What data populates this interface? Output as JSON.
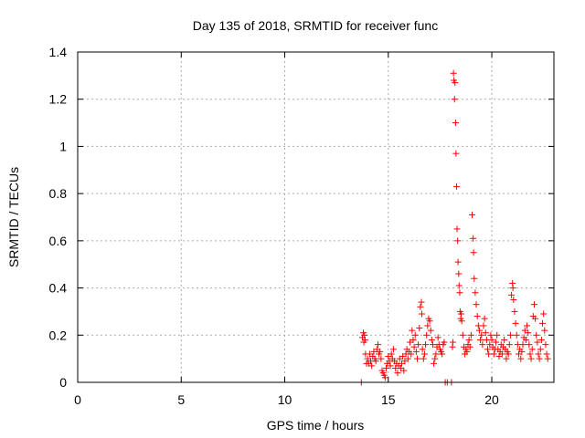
{
  "chart_data": {
    "type": "scatter",
    "title": "Day 135 of 2018, SRMTID for receiver func",
    "xlabel": "GPS time / hours",
    "ylabel": "SRMTID / TECUs",
    "xlim": [
      0,
      23
    ],
    "ylim": [
      0,
      1.4
    ],
    "x_ticks": [
      0,
      5,
      10,
      15,
      20
    ],
    "x_tick_labels": [
      "0",
      "5",
      "10",
      "15",
      "20"
    ],
    "y_ticks": [
      0,
      0.2,
      0.4,
      0.6,
      0.8,
      1.0,
      1.2,
      1.4
    ],
    "y_tick_labels": [
      "0",
      "0.2",
      "0.4",
      "0.6",
      "0.8",
      "1",
      "1.2",
      "1.4"
    ],
    "grid": true,
    "marker": "+",
    "series": [
      {
        "name": "SRMTID",
        "color": "#ff0000",
        "points": [
          [
            13.7,
            0.0
          ],
          [
            13.75,
            0.19
          ],
          [
            13.8,
            0.21
          ],
          [
            13.82,
            0.17
          ],
          [
            13.85,
            0.2
          ],
          [
            13.88,
            0.18
          ],
          [
            13.9,
            0.12
          ],
          [
            13.95,
            0.08
          ],
          [
            14.0,
            0.1
          ],
          [
            14.05,
            0.08
          ],
          [
            14.1,
            0.12
          ],
          [
            14.15,
            0.09
          ],
          [
            14.2,
            0.07
          ],
          [
            14.25,
            0.11
          ],
          [
            14.3,
            0.13
          ],
          [
            14.35,
            0.1
          ],
          [
            14.4,
            0.09
          ],
          [
            14.45,
            0.14
          ],
          [
            14.5,
            0.16
          ],
          [
            14.55,
            0.12
          ],
          [
            14.6,
            0.13
          ],
          [
            14.65,
            0.1
          ],
          [
            14.7,
            0.05
          ],
          [
            14.75,
            0.04
          ],
          [
            14.8,
            0.03
          ],
          [
            14.85,
            0.02
          ],
          [
            14.9,
            0.06
          ],
          [
            14.95,
            0.08
          ],
          [
            15.0,
            0.11
          ],
          [
            15.05,
            0.09
          ],
          [
            15.1,
            0.07
          ],
          [
            15.15,
            0.12
          ],
          [
            15.2,
            0.1
          ],
          [
            15.25,
            0.14
          ],
          [
            15.3,
            0.09
          ],
          [
            15.35,
            0.06
          ],
          [
            15.4,
            0.08
          ],
          [
            15.45,
            0.04
          ],
          [
            15.5,
            0.07
          ],
          [
            15.55,
            0.1
          ],
          [
            15.6,
            0.06
          ],
          [
            15.65,
            0.08
          ],
          [
            15.7,
            0.11
          ],
          [
            15.75,
            0.05
          ],
          [
            15.8,
            0.09
          ],
          [
            15.85,
            0.12
          ],
          [
            15.9,
            0.14
          ],
          [
            15.95,
            0.1
          ],
          [
            16.0,
            0.13
          ],
          [
            16.05,
            0.17
          ],
          [
            16.1,
            0.12
          ],
          [
            16.15,
            0.22
          ],
          [
            16.2,
            0.18
          ],
          [
            16.25,
            0.15
          ],
          [
            16.3,
            0.2
          ],
          [
            16.35,
            0.13
          ],
          [
            16.4,
            0.1
          ],
          [
            16.45,
            0.16
          ],
          [
            16.5,
            0.23
          ],
          [
            16.55,
            0.32
          ],
          [
            16.6,
            0.34
          ],
          [
            16.62,
            0.29
          ],
          [
            16.65,
            0.14
          ],
          [
            16.7,
            0.1
          ],
          [
            16.75,
            0.12
          ],
          [
            16.8,
            0.16
          ],
          [
            16.85,
            0.2
          ],
          [
            16.9,
            0.24
          ],
          [
            16.95,
            0.27
          ],
          [
            17.0,
            0.26
          ],
          [
            17.05,
            0.22
          ],
          [
            17.1,
            0.18
          ],
          [
            17.15,
            0.16
          ],
          [
            17.2,
            0.08
          ],
          [
            17.25,
            0.1
          ],
          [
            17.3,
            0.12
          ],
          [
            17.35,
            0.15
          ],
          [
            17.4,
            0.19
          ],
          [
            17.45,
            0.16
          ],
          [
            17.5,
            0.14
          ],
          [
            17.55,
            0.13
          ],
          [
            17.6,
            0.12
          ],
          [
            17.65,
            0.16
          ],
          [
            17.7,
            0.17
          ],
          [
            17.75,
            0.0
          ],
          [
            17.85,
            0.0
          ],
          [
            18.05,
            0.0
          ],
          [
            18.1,
            0.15
          ],
          [
            18.12,
            0.17
          ],
          [
            18.15,
            1.31
          ],
          [
            18.17,
            1.28
          ],
          [
            18.2,
            1.2
          ],
          [
            18.22,
            1.27
          ],
          [
            18.25,
            1.1
          ],
          [
            18.27,
            0.97
          ],
          [
            18.3,
            0.83
          ],
          [
            18.32,
            0.65
          ],
          [
            18.35,
            0.6
          ],
          [
            18.37,
            0.51
          ],
          [
            18.4,
            0.46
          ],
          [
            18.42,
            0.41
          ],
          [
            18.45,
            0.38
          ],
          [
            18.47,
            0.3
          ],
          [
            18.5,
            0.27
          ],
          [
            18.52,
            0.29
          ],
          [
            18.55,
            0.26
          ],
          [
            18.6,
            0.2
          ],
          [
            18.65,
            0.15
          ],
          [
            18.7,
            0.12
          ],
          [
            18.75,
            0.14
          ],
          [
            18.8,
            0.13
          ],
          [
            18.85,
            0.16
          ],
          [
            18.9,
            0.18
          ],
          [
            18.95,
            0.15
          ],
          [
            19.0,
            0.2
          ],
          [
            19.05,
            0.71
          ],
          [
            19.1,
            0.61
          ],
          [
            19.12,
            0.55
          ],
          [
            19.15,
            0.44
          ],
          [
            19.2,
            0.38
          ],
          [
            19.25,
            0.33
          ],
          [
            19.3,
            0.28
          ],
          [
            19.35,
            0.24
          ],
          [
            19.4,
            0.22
          ],
          [
            19.45,
            0.18
          ],
          [
            19.5,
            0.2
          ],
          [
            19.55,
            0.16
          ],
          [
            19.6,
            0.24
          ],
          [
            19.65,
            0.27
          ],
          [
            19.7,
            0.21
          ],
          [
            19.75,
            0.18
          ],
          [
            19.8,
            0.14
          ],
          [
            19.85,
            0.12
          ],
          [
            19.9,
            0.16
          ],
          [
            19.95,
            0.2
          ],
          [
            20.0,
            0.18
          ],
          [
            20.05,
            0.15
          ],
          [
            20.1,
            0.12
          ],
          [
            20.15,
            0.14
          ],
          [
            20.2,
            0.17
          ],
          [
            20.25,
            0.2
          ],
          [
            20.3,
            0.14
          ],
          [
            20.35,
            0.11
          ],
          [
            20.4,
            0.13
          ],
          [
            20.45,
            0.16
          ],
          [
            20.5,
            0.12
          ],
          [
            20.55,
            0.15
          ],
          [
            20.6,
            0.18
          ],
          [
            20.65,
            0.14
          ],
          [
            20.7,
            0.1
          ],
          [
            20.75,
            0.13
          ],
          [
            20.8,
            0.12
          ],
          [
            20.85,
            0.16
          ],
          [
            20.9,
            0.2
          ],
          [
            20.95,
            0.37
          ],
          [
            21.0,
            0.42
          ],
          [
            21.02,
            0.4
          ],
          [
            21.05,
            0.35
          ],
          [
            21.1,
            0.3
          ],
          [
            21.15,
            0.25
          ],
          [
            21.2,
            0.2
          ],
          [
            21.25,
            0.16
          ],
          [
            21.3,
            0.12
          ],
          [
            21.35,
            0.14
          ],
          [
            21.4,
            0.1
          ],
          [
            21.45,
            0.13
          ],
          [
            21.5,
            0.16
          ],
          [
            21.55,
            0.19
          ],
          [
            21.6,
            0.22
          ],
          [
            21.65,
            0.18
          ],
          [
            21.7,
            0.24
          ],
          [
            21.75,
            0.21
          ],
          [
            21.8,
            0.16
          ],
          [
            21.85,
            0.12
          ],
          [
            21.9,
            0.1
          ],
          [
            21.95,
            0.14
          ],
          [
            22.0,
            0.28
          ],
          [
            22.05,
            0.33
          ],
          [
            22.1,
            0.27
          ],
          [
            22.15,
            0.2
          ],
          [
            22.2,
            0.17
          ],
          [
            22.25,
            0.12
          ],
          [
            22.3,
            0.1
          ],
          [
            22.35,
            0.14
          ],
          [
            22.4,
            0.18
          ],
          [
            22.45,
            0.25
          ],
          [
            22.5,
            0.29
          ],
          [
            22.55,
            0.22
          ],
          [
            22.6,
            0.16
          ],
          [
            22.65,
            0.12
          ],
          [
            22.7,
            0.1
          ]
        ]
      }
    ]
  }
}
